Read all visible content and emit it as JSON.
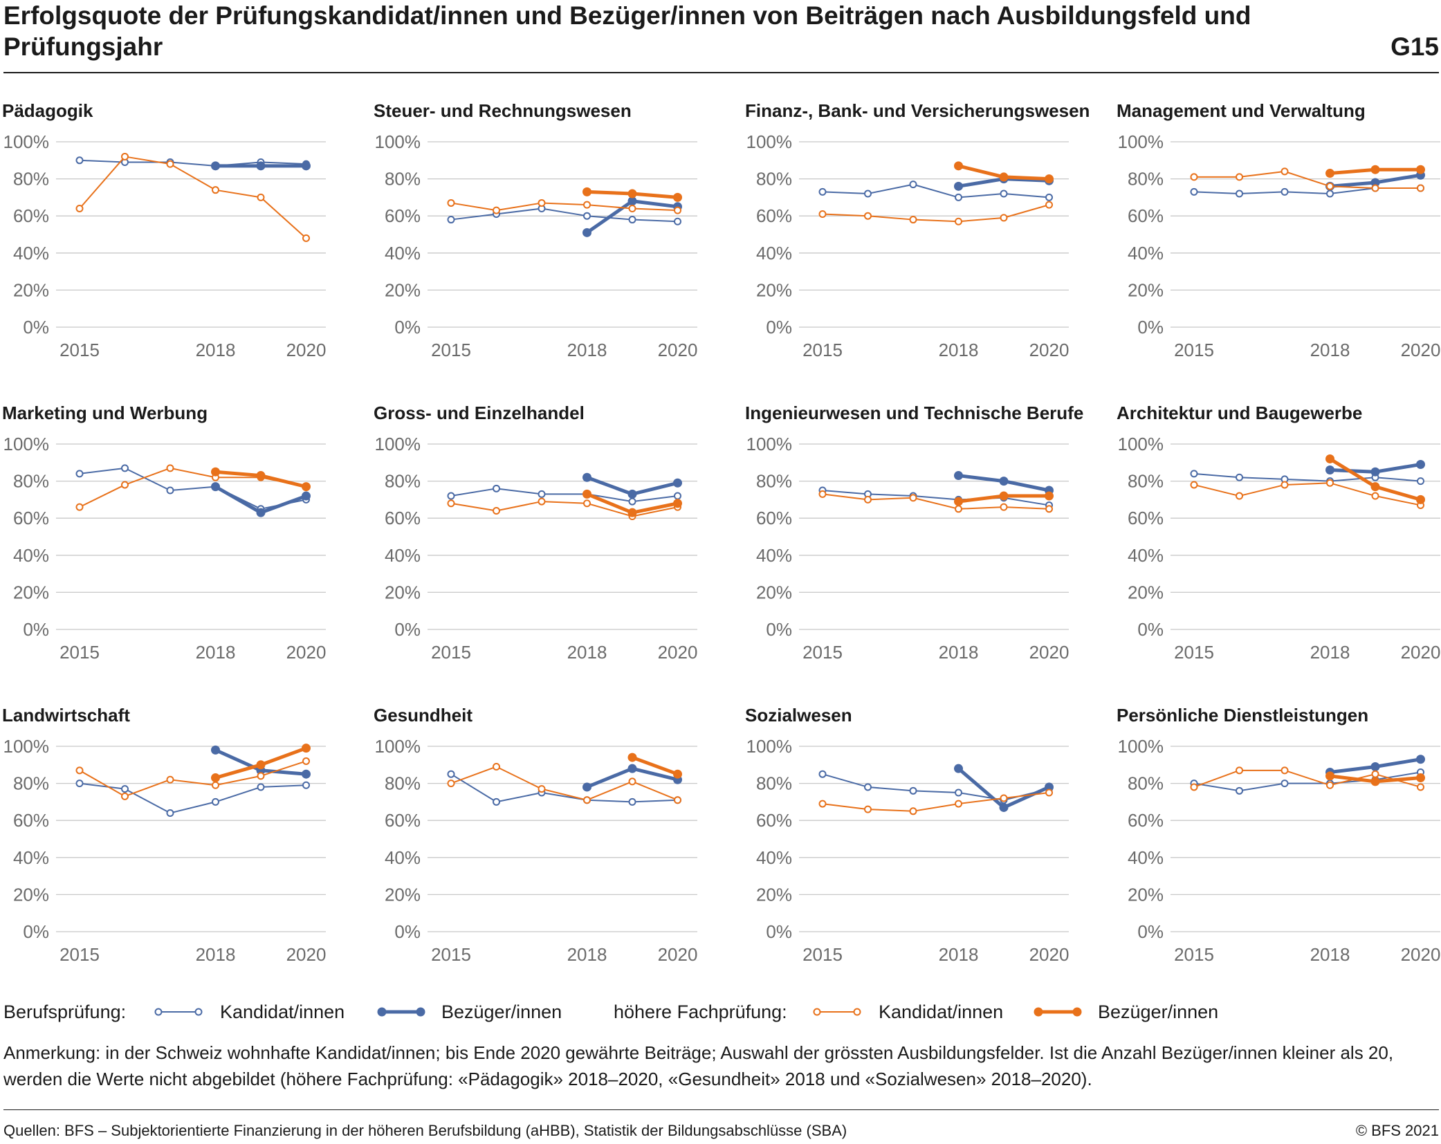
{
  "header": {
    "title": "Erfolgsquote der Prüfungskandidat/innen und Bezüger/innen von Beiträgen nach Ausbildungsfeld und Prüfungsjahr",
    "code": "G15"
  },
  "legend": {
    "group1_label": "Berufsprüfung:",
    "group2_label": "höhere Fachprüfung:",
    "kandidat_label": "Kandidat/innen",
    "bezueger_label": "Bezüger/innen"
  },
  "note": "Anmerkung: in der Schweiz wohnhafte Kandidat/innen; bis Ende 2020 gewährte Beiträge; Auswahl der grössten Ausbildungsfelder. Ist die Anzahl Bezüger/innen kleiner als 20, werden die Werte nicht abgebildet (höhere Fachprüfung: «Pädagogik» 2018–2020, «Gesundheit» 2018 und «Sozialwesen» 2018–2020).",
  "footer": {
    "source": "Quellen: BFS – Subjektorientierte Finanzierung in der höheren Berufsbildung (aHBB), Statistik der Bildungsabschlüsse (SBA)",
    "copyright": "© BFS 2021"
  },
  "colors": {
    "blue": "#4a6aa5",
    "orange": "#e8711a",
    "grid": "#c8c8c8",
    "tick_text": "#6b6b6b"
  },
  "chart_data": [
    {
      "type": "line",
      "title": "Pädagogik",
      "x": [
        2015,
        2016,
        2017,
        2018,
        2019,
        2020
      ],
      "x_ticks": [
        "2015",
        "2018",
        "2020"
      ],
      "y_ticks": [
        "100%",
        "80%",
        "60%",
        "40%",
        "20%",
        "0%"
      ],
      "ylim": [
        0,
        100
      ],
      "series": [
        {
          "name": "Berufsprüfung: Kandidat/innen",
          "values": [
            90,
            89,
            89,
            87,
            89,
            88
          ]
        },
        {
          "name": "Berufsprüfung: Bezüger/innen",
          "values": [
            null,
            null,
            null,
            87,
            87,
            87
          ]
        },
        {
          "name": "höhere Fachprüfung: Kandidat/innen",
          "values": [
            64,
            92,
            88,
            74,
            70,
            48
          ]
        },
        {
          "name": "höhere Fachprüfung: Bezüger/innen",
          "values": [
            null,
            null,
            null,
            null,
            null,
            null
          ]
        }
      ]
    },
    {
      "type": "line",
      "title": "Steuer- und Rechnungswesen",
      "x": [
        2015,
        2016,
        2017,
        2018,
        2019,
        2020
      ],
      "x_ticks": [
        "2015",
        "2018",
        "2020"
      ],
      "y_ticks": [
        "100%",
        "80%",
        "60%",
        "40%",
        "20%",
        "0%"
      ],
      "ylim": [
        0,
        100
      ],
      "series": [
        {
          "name": "Berufsprüfung: Kandidat/innen",
          "values": [
            58,
            61,
            64,
            60,
            58,
            57
          ]
        },
        {
          "name": "Berufsprüfung: Bezüger/innen",
          "values": [
            null,
            null,
            null,
            51,
            68,
            65
          ]
        },
        {
          "name": "höhere Fachprüfung: Kandidat/innen",
          "values": [
            67,
            63,
            67,
            66,
            64,
            63
          ]
        },
        {
          "name": "höhere Fachprüfung: Bezüger/innen",
          "values": [
            null,
            null,
            null,
            73,
            72,
            70
          ]
        }
      ]
    },
    {
      "type": "line",
      "title": "Finanz-, Bank- und Versicherungswesen",
      "x": [
        2015,
        2016,
        2017,
        2018,
        2019,
        2020
      ],
      "x_ticks": [
        "2015",
        "2018",
        "2020"
      ],
      "y_ticks": [
        "100%",
        "80%",
        "60%",
        "40%",
        "20%",
        "0%"
      ],
      "ylim": [
        0,
        100
      ],
      "series": [
        {
          "name": "Berufsprüfung: Kandidat/innen",
          "values": [
            73,
            72,
            77,
            70,
            72,
            70
          ]
        },
        {
          "name": "Berufsprüfung: Bezüger/innen",
          "values": [
            null,
            null,
            null,
            76,
            80,
            79
          ]
        },
        {
          "name": "höhere Fachprüfung: Kandidat/innen",
          "values": [
            61,
            60,
            58,
            57,
            59,
            66
          ]
        },
        {
          "name": "höhere Fachprüfung: Bezüger/innen",
          "values": [
            null,
            null,
            null,
            87,
            81,
            80
          ]
        }
      ]
    },
    {
      "type": "line",
      "title": "Management und Verwaltung",
      "x": [
        2015,
        2016,
        2017,
        2018,
        2019,
        2020
      ],
      "x_ticks": [
        "2015",
        "2018",
        "2020"
      ],
      "y_ticks": [
        "100%",
        "80%",
        "60%",
        "40%",
        "20%",
        "0%"
      ],
      "ylim": [
        0,
        100
      ],
      "series": [
        {
          "name": "Berufsprüfung: Kandidat/innen",
          "values": [
            73,
            72,
            73,
            72,
            75,
            75
          ]
        },
        {
          "name": "Berufsprüfung: Bezüger/innen",
          "values": [
            null,
            null,
            null,
            76,
            78,
            82
          ]
        },
        {
          "name": "höhere Fachprüfung: Kandidat/innen",
          "values": [
            81,
            81,
            84,
            76,
            75,
            75
          ]
        },
        {
          "name": "höhere Fachprüfung: Bezüger/innen",
          "values": [
            null,
            null,
            null,
            83,
            85,
            85
          ]
        }
      ]
    },
    {
      "type": "line",
      "title": "Marketing und Werbung",
      "x": [
        2015,
        2016,
        2017,
        2018,
        2019,
        2020
      ],
      "x_ticks": [
        "2015",
        "2018",
        "2020"
      ],
      "y_ticks": [
        "100%",
        "80%",
        "60%",
        "40%",
        "20%",
        "0%"
      ],
      "ylim": [
        0,
        100
      ],
      "series": [
        {
          "name": "Berufsprüfung: Kandidat/innen",
          "values": [
            84,
            87,
            75,
            77,
            65,
            70
          ]
        },
        {
          "name": "Berufsprüfung: Bezüger/innen",
          "values": [
            null,
            null,
            null,
            77,
            63,
            72
          ]
        },
        {
          "name": "höhere Fachprüfung: Kandidat/innen",
          "values": [
            66,
            78,
            87,
            82,
            82,
            77
          ]
        },
        {
          "name": "höhere Fachprüfung: Bezüger/innen",
          "values": [
            null,
            null,
            null,
            85,
            83,
            77
          ]
        }
      ]
    },
    {
      "type": "line",
      "title": "Gross- und Einzelhandel",
      "x": [
        2015,
        2016,
        2017,
        2018,
        2019,
        2020
      ],
      "x_ticks": [
        "2015",
        "2018",
        "2020"
      ],
      "y_ticks": [
        "100%",
        "80%",
        "60%",
        "40%",
        "20%",
        "0%"
      ],
      "ylim": [
        0,
        100
      ],
      "series": [
        {
          "name": "Berufsprüfung: Kandidat/innen",
          "values": [
            72,
            76,
            73,
            73,
            69,
            72
          ]
        },
        {
          "name": "Berufsprüfung: Bezüger/innen",
          "values": [
            null,
            null,
            null,
            82,
            73,
            79
          ]
        },
        {
          "name": "höhere Fachprüfung: Kandidat/innen",
          "values": [
            68,
            64,
            69,
            68,
            61,
            66
          ]
        },
        {
          "name": "höhere Fachprüfung: Bezüger/innen",
          "values": [
            null,
            null,
            null,
            73,
            63,
            68
          ]
        }
      ]
    },
    {
      "type": "line",
      "title": "Ingenieurwesen und Technische Berufe",
      "x": [
        2015,
        2016,
        2017,
        2018,
        2019,
        2020
      ],
      "x_ticks": [
        "2015",
        "2018",
        "2020"
      ],
      "y_ticks": [
        "100%",
        "80%",
        "60%",
        "40%",
        "20%",
        "0%"
      ],
      "ylim": [
        0,
        100
      ],
      "series": [
        {
          "name": "Berufsprüfung: Kandidat/innen",
          "values": [
            75,
            73,
            72,
            70,
            71,
            67
          ]
        },
        {
          "name": "Berufsprüfung: Bezüger/innen",
          "values": [
            null,
            null,
            null,
            83,
            80,
            75
          ]
        },
        {
          "name": "höhere Fachprüfung: Kandidat/innen",
          "values": [
            73,
            70,
            71,
            65,
            66,
            65
          ]
        },
        {
          "name": "höhere Fachprüfung: Bezüger/innen",
          "values": [
            null,
            null,
            null,
            69,
            72,
            72
          ]
        }
      ]
    },
    {
      "type": "line",
      "title": "Architektur und Baugewerbe",
      "x": [
        2015,
        2016,
        2017,
        2018,
        2019,
        2020
      ],
      "x_ticks": [
        "2015",
        "2018",
        "2020"
      ],
      "y_ticks": [
        "100%",
        "80%",
        "60%",
        "40%",
        "20%",
        "0%"
      ],
      "ylim": [
        0,
        100
      ],
      "series": [
        {
          "name": "Berufsprüfung: Kandidat/innen",
          "values": [
            84,
            82,
            81,
            80,
            82,
            80
          ]
        },
        {
          "name": "Berufsprüfung: Bezüger/innen",
          "values": [
            null,
            null,
            null,
            86,
            85,
            89
          ]
        },
        {
          "name": "höhere Fachprüfung: Kandidat/innen",
          "values": [
            78,
            72,
            78,
            79,
            72,
            67
          ]
        },
        {
          "name": "höhere Fachprüfung: Bezüger/innen",
          "values": [
            null,
            null,
            null,
            92,
            77,
            70
          ]
        }
      ]
    },
    {
      "type": "line",
      "title": "Landwirtschaft",
      "x": [
        2015,
        2016,
        2017,
        2018,
        2019,
        2020
      ],
      "x_ticks": [
        "2015",
        "2018",
        "2020"
      ],
      "y_ticks": [
        "100%",
        "80%",
        "60%",
        "40%",
        "20%",
        "0%"
      ],
      "ylim": [
        0,
        100
      ],
      "series": [
        {
          "name": "Berufsprüfung: Kandidat/innen",
          "values": [
            80,
            77,
            64,
            70,
            78,
            79
          ]
        },
        {
          "name": "Berufsprüfung: Bezüger/innen",
          "values": [
            null,
            null,
            null,
            98,
            87,
            85
          ]
        },
        {
          "name": "höhere Fachprüfung: Kandidat/innen",
          "values": [
            87,
            73,
            82,
            79,
            84,
            92
          ]
        },
        {
          "name": "höhere Fachprüfung: Bezüger/innen",
          "values": [
            null,
            null,
            null,
            83,
            90,
            99
          ]
        }
      ]
    },
    {
      "type": "line",
      "title": "Gesundheit",
      "x": [
        2015,
        2016,
        2017,
        2018,
        2019,
        2020
      ],
      "x_ticks": [
        "2015",
        "2018",
        "2020"
      ],
      "y_ticks": [
        "100%",
        "80%",
        "60%",
        "40%",
        "20%",
        "0%"
      ],
      "ylim": [
        0,
        100
      ],
      "series": [
        {
          "name": "Berufsprüfung: Kandidat/innen",
          "values": [
            85,
            70,
            75,
            71,
            70,
            71
          ]
        },
        {
          "name": "Berufsprüfung: Bezüger/innen",
          "values": [
            null,
            null,
            null,
            78,
            88,
            82
          ]
        },
        {
          "name": "höhere Fachprüfung: Kandidat/innen",
          "values": [
            80,
            89,
            77,
            71,
            81,
            71
          ]
        },
        {
          "name": "höhere Fachprüfung: Bezüger/innen",
          "values": [
            null,
            null,
            null,
            null,
            94,
            85
          ]
        }
      ]
    },
    {
      "type": "line",
      "title": "Sozialwesen",
      "x": [
        2015,
        2016,
        2017,
        2018,
        2019,
        2020
      ],
      "x_ticks": [
        "2015",
        "2018",
        "2020"
      ],
      "y_ticks": [
        "100%",
        "80%",
        "60%",
        "40%",
        "20%",
        "0%"
      ],
      "ylim": [
        0,
        100
      ],
      "series": [
        {
          "name": "Berufsprüfung: Kandidat/innen",
          "values": [
            85,
            78,
            76,
            75,
            71,
            77
          ]
        },
        {
          "name": "Berufsprüfung: Bezüger/innen",
          "values": [
            null,
            null,
            null,
            88,
            67,
            78
          ]
        },
        {
          "name": "höhere Fachprüfung: Kandidat/innen",
          "values": [
            69,
            66,
            65,
            69,
            72,
            75
          ]
        },
        {
          "name": "höhere Fachprüfung: Bezüger/innen",
          "values": [
            null,
            null,
            null,
            null,
            null,
            null
          ]
        }
      ]
    },
    {
      "type": "line",
      "title": "Persönliche Dienstleistungen",
      "x": [
        2015,
        2016,
        2017,
        2018,
        2019,
        2020
      ],
      "x_ticks": [
        "2015",
        "2018",
        "2020"
      ],
      "y_ticks": [
        "100%",
        "80%",
        "60%",
        "40%",
        "20%",
        "0%"
      ],
      "ylim": [
        0,
        100
      ],
      "series": [
        {
          "name": "Berufsprüfung: Kandidat/innen",
          "values": [
            80,
            76,
            80,
            80,
            82,
            86
          ]
        },
        {
          "name": "Berufsprüfung: Bezüger/innen",
          "values": [
            null,
            null,
            null,
            86,
            89,
            93
          ]
        },
        {
          "name": "höhere Fachprüfung: Kandidat/innen",
          "values": [
            78,
            87,
            87,
            79,
            85,
            78
          ]
        },
        {
          "name": "höhere Fachprüfung: Bezüger/innen",
          "values": [
            null,
            null,
            null,
            84,
            81,
            83
          ]
        }
      ]
    }
  ]
}
